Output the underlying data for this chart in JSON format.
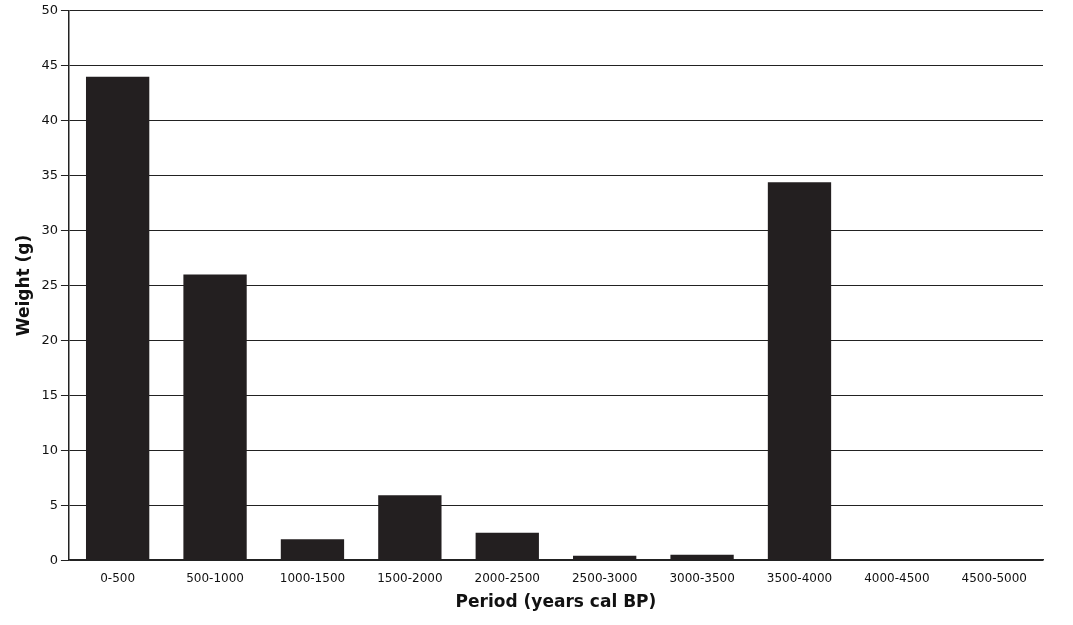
{
  "chart_data": {
    "type": "bar",
    "xlabel": "Period (years cal BP)",
    "ylabel": "Weight (g)",
    "categories": [
      "0-500",
      "500-1000",
      "1000-1500",
      "1500-2000",
      "2000-2500",
      "2500-3000",
      "3000-3500",
      "3500-4000",
      "4000-4500",
      "4500-5000"
    ],
    "values": [
      44,
      26,
      1.9,
      5.9,
      2.5,
      0.4,
      0.5,
      34.4,
      0,
      0
    ],
    "color": "#231f20",
    "ylim": [
      0,
      50
    ],
    "yticks": [
      0,
      5,
      10,
      15,
      20,
      25,
      30,
      35,
      40,
      45,
      50
    ],
    "grid": "y",
    "legend": false
  }
}
